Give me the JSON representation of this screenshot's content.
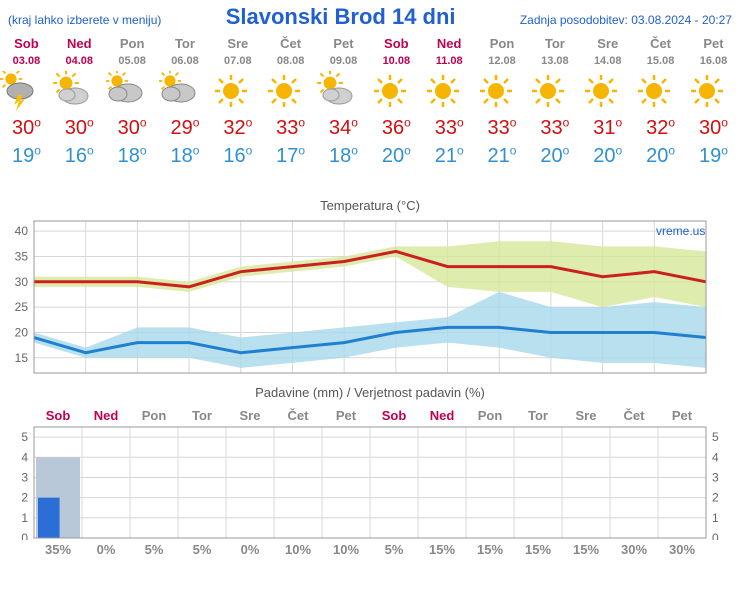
{
  "header": {
    "menu_hint": "(kraj lahko izberete v meniju)",
    "title": "Slavonski Brod 14 dni",
    "updated_label": "Zadnja posodobitev: 03.08.2024 - 20:27"
  },
  "days": [
    {
      "name": "Sob",
      "date": "03.08",
      "weekend": true,
      "icon": "storm",
      "high": 30,
      "low": 19
    },
    {
      "name": "Ned",
      "date": "04.08",
      "weekend": true,
      "icon": "partly",
      "high": 30,
      "low": 16
    },
    {
      "name": "Pon",
      "date": "05.08",
      "weekend": false,
      "icon": "cloudy",
      "high": 30,
      "low": 18
    },
    {
      "name": "Tor",
      "date": "06.08",
      "weekend": false,
      "icon": "cloudy",
      "high": 29,
      "low": 18
    },
    {
      "name": "Sre",
      "date": "07.08",
      "weekend": false,
      "icon": "sun",
      "high": 32,
      "low": 16
    },
    {
      "name": "Čet",
      "date": "08.08",
      "weekend": false,
      "icon": "sun",
      "high": 33,
      "low": 17
    },
    {
      "name": "Pet",
      "date": "09.08",
      "weekend": false,
      "icon": "partly",
      "high": 34,
      "low": 18
    },
    {
      "name": "Sob",
      "date": "10.08",
      "weekend": true,
      "icon": "sun",
      "high": 36,
      "low": 20
    },
    {
      "name": "Ned",
      "date": "11.08",
      "weekend": true,
      "icon": "sun",
      "high": 33,
      "low": 21
    },
    {
      "name": "Pon",
      "date": "12.08",
      "weekend": false,
      "icon": "sun",
      "high": 33,
      "low": 21
    },
    {
      "name": "Tor",
      "date": "13.08",
      "weekend": false,
      "icon": "sun",
      "high": 33,
      "low": 20
    },
    {
      "name": "Sre",
      "date": "14.08",
      "weekend": false,
      "icon": "sun",
      "high": 31,
      "low": 20
    },
    {
      "name": "Čet",
      "date": "15.08",
      "weekend": false,
      "icon": "sun",
      "high": 32,
      "low": 20
    },
    {
      "name": "Pet",
      "date": "16.08",
      "weekend": false,
      "icon": "sun",
      "high": 30,
      "low": 19
    }
  ],
  "temp_chart": {
    "title": "Temperatura (°C)",
    "watermark": "vreme.us",
    "ylim": [
      12,
      42
    ],
    "yticks": [
      15,
      20,
      25,
      30,
      35,
      40
    ],
    "high_band_color": "#d6e89a",
    "low_band_color": "#a8d8ea",
    "high_line_color": "#cc2020",
    "low_line_color": "#2080d0",
    "grid_color": "#d8d8d8",
    "high_line": [
      30,
      30,
      30,
      29,
      32,
      33,
      34,
      36,
      33,
      33,
      33,
      31,
      32,
      30
    ],
    "high_upper": [
      31,
      31,
      31,
      30,
      33,
      34,
      35,
      37,
      37,
      38,
      38,
      37,
      37,
      36
    ],
    "high_lower": [
      29,
      29,
      29,
      28,
      31,
      32,
      33,
      35,
      29,
      28,
      28,
      25,
      27,
      25
    ],
    "low_line": [
      19,
      16,
      18,
      18,
      16,
      17,
      18,
      20,
      21,
      21,
      20,
      20,
      20,
      19
    ],
    "low_upper": [
      20,
      17,
      21,
      21,
      19,
      20,
      21,
      22,
      23,
      28,
      25,
      25,
      26,
      25
    ],
    "low_lower": [
      18,
      15,
      15,
      15,
      13,
      14,
      15,
      17,
      18,
      17,
      15,
      14,
      14,
      13
    ]
  },
  "precip_chart": {
    "title": "Padavine (mm) / Verjetnost padavin (%)",
    "ylim": [
      0,
      5.5
    ],
    "yticks": [
      0,
      1,
      2,
      3,
      4,
      5
    ],
    "bar_color": "#2b6fd6",
    "range_color": "#b8c8d8",
    "grid_color": "#d8d8d8",
    "bars": [
      2,
      0,
      0,
      0,
      0,
      0,
      0,
      0,
      0,
      0,
      0,
      0,
      0,
      0
    ],
    "range_upper": [
      4,
      0,
      0,
      0,
      0,
      0,
      0,
      0,
      0,
      0,
      0,
      0,
      0,
      0
    ],
    "probs": [
      "35%",
      "0%",
      "5%",
      "5%",
      "0%",
      "10%",
      "10%",
      "5%",
      "15%",
      "15%",
      "15%",
      "15%",
      "30%",
      "30%"
    ]
  }
}
